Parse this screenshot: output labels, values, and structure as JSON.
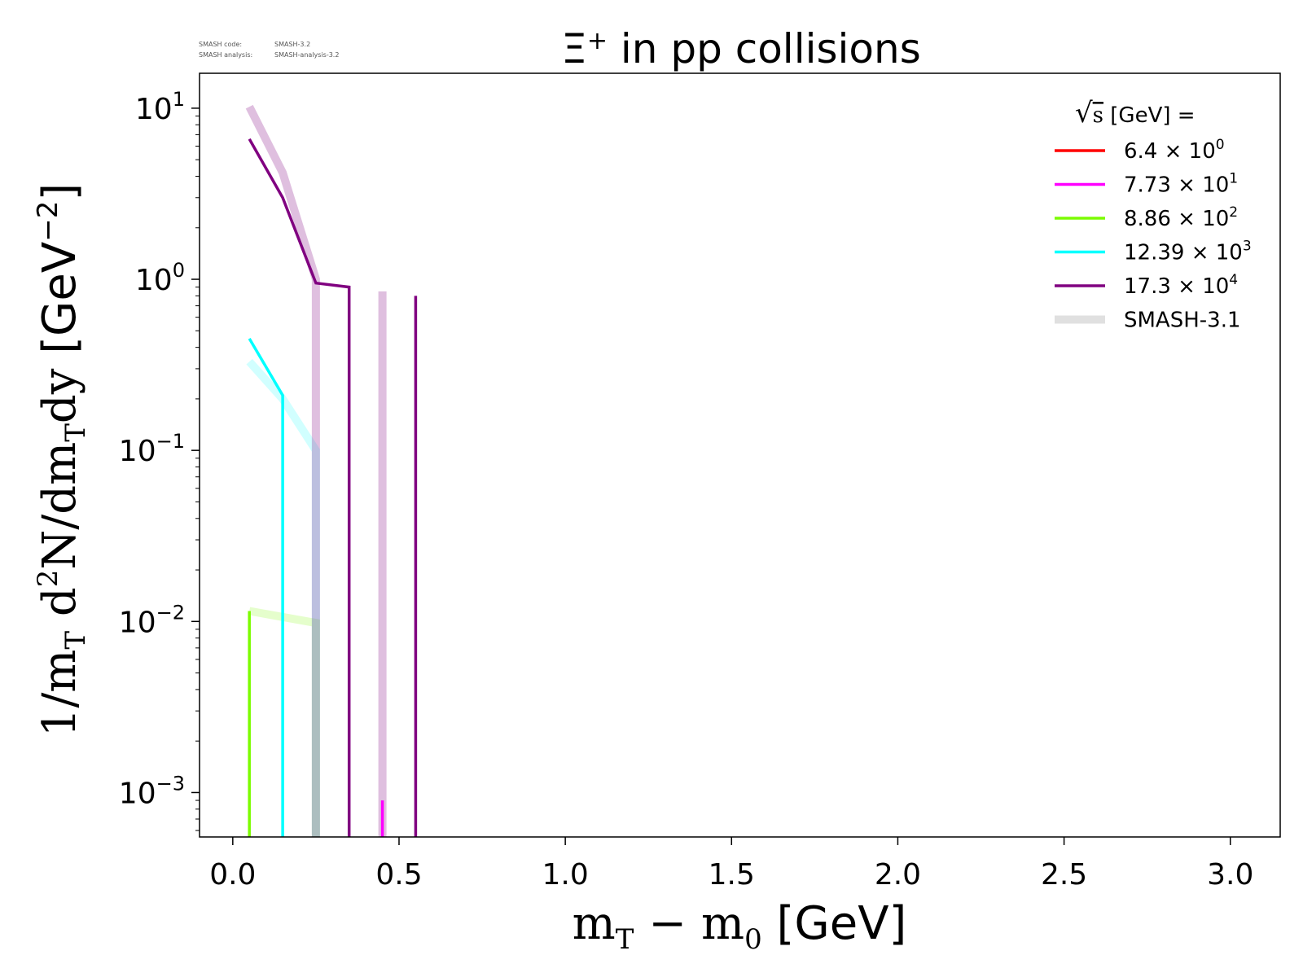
{
  "header": {
    "code_label": "SMASH code:",
    "code_value": "SMASH-3.2",
    "analysis_label": "SMASH analysis:",
    "analysis_value": "SMASH-analysis-3.2"
  },
  "chart_data": {
    "type": "line",
    "title_main": "Ξ",
    "title_sup": "+",
    "title_rest": " in pp collisions",
    "xlabel_math": "m",
    "xlabel_sub1": "T",
    "xlabel_minus": " − m",
    "xlabel_sub2": "0",
    "xlabel_unit": " [GeV]",
    "ylabel_prefix": "1/m",
    "ylabel_sub": "T",
    "ylabel_d": " d",
    "ylabel_sup2": "2",
    "ylabel_mid": "N/dm",
    "ylabel_sub2": "T",
    "ylabel_dy": "dy",
    "ylabel_unit": " [GeV",
    "ylabel_unit_sup": "−2",
    "ylabel_unit_close": "]",
    "xlim": [
      -0.1,
      3.15
    ],
    "ylim": [
      0.00055,
      16
    ],
    "yscale": "log",
    "xticks": [
      "0.0",
      "0.5",
      "1.0",
      "1.5",
      "2.0",
      "2.5",
      "3.0"
    ],
    "xtick_values": [
      0.0,
      0.5,
      1.0,
      1.5,
      2.0,
      2.5,
      3.0
    ],
    "yticks": [
      {
        "value": 10,
        "base": "10",
        "exp": "1"
      },
      {
        "value": 1,
        "base": "10",
        "exp": "0"
      },
      {
        "value": 0.1,
        "base": "10",
        "exp": "−1"
      },
      {
        "value": 0.01,
        "base": "10",
        "exp": "−2"
      },
      {
        "value": 0.001,
        "base": "10",
        "exp": "−3"
      }
    ],
    "legend": {
      "title_sqrt": "√",
      "title_s": "s",
      "title_rest": " [GeV] =",
      "placement": "top-right",
      "entries": [
        {
          "mant": "6.4 × 10",
          "exp": "0",
          "color": "#ff0000",
          "style": "line"
        },
        {
          "mant": "7.73 × 10",
          "exp": "1",
          "color": "#ff00ff",
          "style": "line"
        },
        {
          "mant": "8.86 × 10",
          "exp": "2",
          "color": "#7cfc00",
          "style": "line"
        },
        {
          "mant": "12.39 × 10",
          "exp": "3",
          "color": "#00ffff",
          "style": "line"
        },
        {
          "mant": "17.3 × 10",
          "exp": "4",
          "color": "#800080",
          "style": "line"
        },
        {
          "mant": "SMASH-3.1",
          "exp": "",
          "color": "#d3d3d3",
          "style": "band"
        }
      ]
    },
    "series": [
      {
        "name": "6.4 × 10^0",
        "color": "#ff0000",
        "kind": "current",
        "points": []
      },
      {
        "name": "7.73 × 10^1",
        "color": "#ff00ff",
        "kind": "current",
        "points": [
          [
            0.45,
            0.0009
          ],
          [
            0.45,
            0.00055
          ]
        ]
      },
      {
        "name": "8.86 × 10^2",
        "color": "#7cfc00",
        "kind": "current",
        "points": [
          [
            0.05,
            0.0115
          ],
          [
            0.05,
            0.00055
          ]
        ]
      },
      {
        "name": "12.39 × 10^3",
        "color": "#00ffff",
        "kind": "current",
        "points": [
          [
            0.05,
            0.45
          ],
          [
            0.15,
            0.21
          ],
          [
            0.15,
            0.00055
          ]
        ]
      },
      {
        "name": "17.3 × 10^4",
        "color": "#800080",
        "kind": "current",
        "points": [
          [
            0.05,
            6.6
          ],
          [
            0.15,
            3.0
          ],
          [
            0.25,
            0.95
          ],
          [
            0.35,
            0.9
          ],
          [
            0.35,
            0.00055
          ],
          [
            null,
            null
          ],
          [
            0.55,
            0.8
          ],
          [
            0.55,
            0.00055
          ]
        ]
      },
      {
        "name": "SMASH-3.1 (8.86 × 10^2)",
        "color": "#7cfc00",
        "kind": "reference",
        "opacity": 0.2,
        "points": [
          [
            0.05,
            0.0115
          ],
          [
            0.25,
            0.0098
          ],
          [
            0.25,
            0.00055
          ]
        ]
      },
      {
        "name": "SMASH-3.1 (12.39 × 10^3)",
        "color": "#00ffff",
        "kind": "reference",
        "opacity": 0.18,
        "points": [
          [
            0.05,
            0.33
          ],
          [
            0.15,
            0.2
          ],
          [
            0.25,
            0.1
          ],
          [
            0.25,
            0.00055
          ]
        ]
      },
      {
        "name": "SMASH-3.1 (17.3 × 10^4)",
        "color": "#800080",
        "kind": "reference",
        "opacity": 0.25,
        "points": [
          [
            0.05,
            10.2
          ],
          [
            0.15,
            4.2
          ],
          [
            0.25,
            1.0
          ],
          [
            0.25,
            0.00055
          ],
          [
            null,
            null
          ],
          [
            0.45,
            0.85
          ],
          [
            0.45,
            0.00055
          ]
        ]
      }
    ]
  }
}
